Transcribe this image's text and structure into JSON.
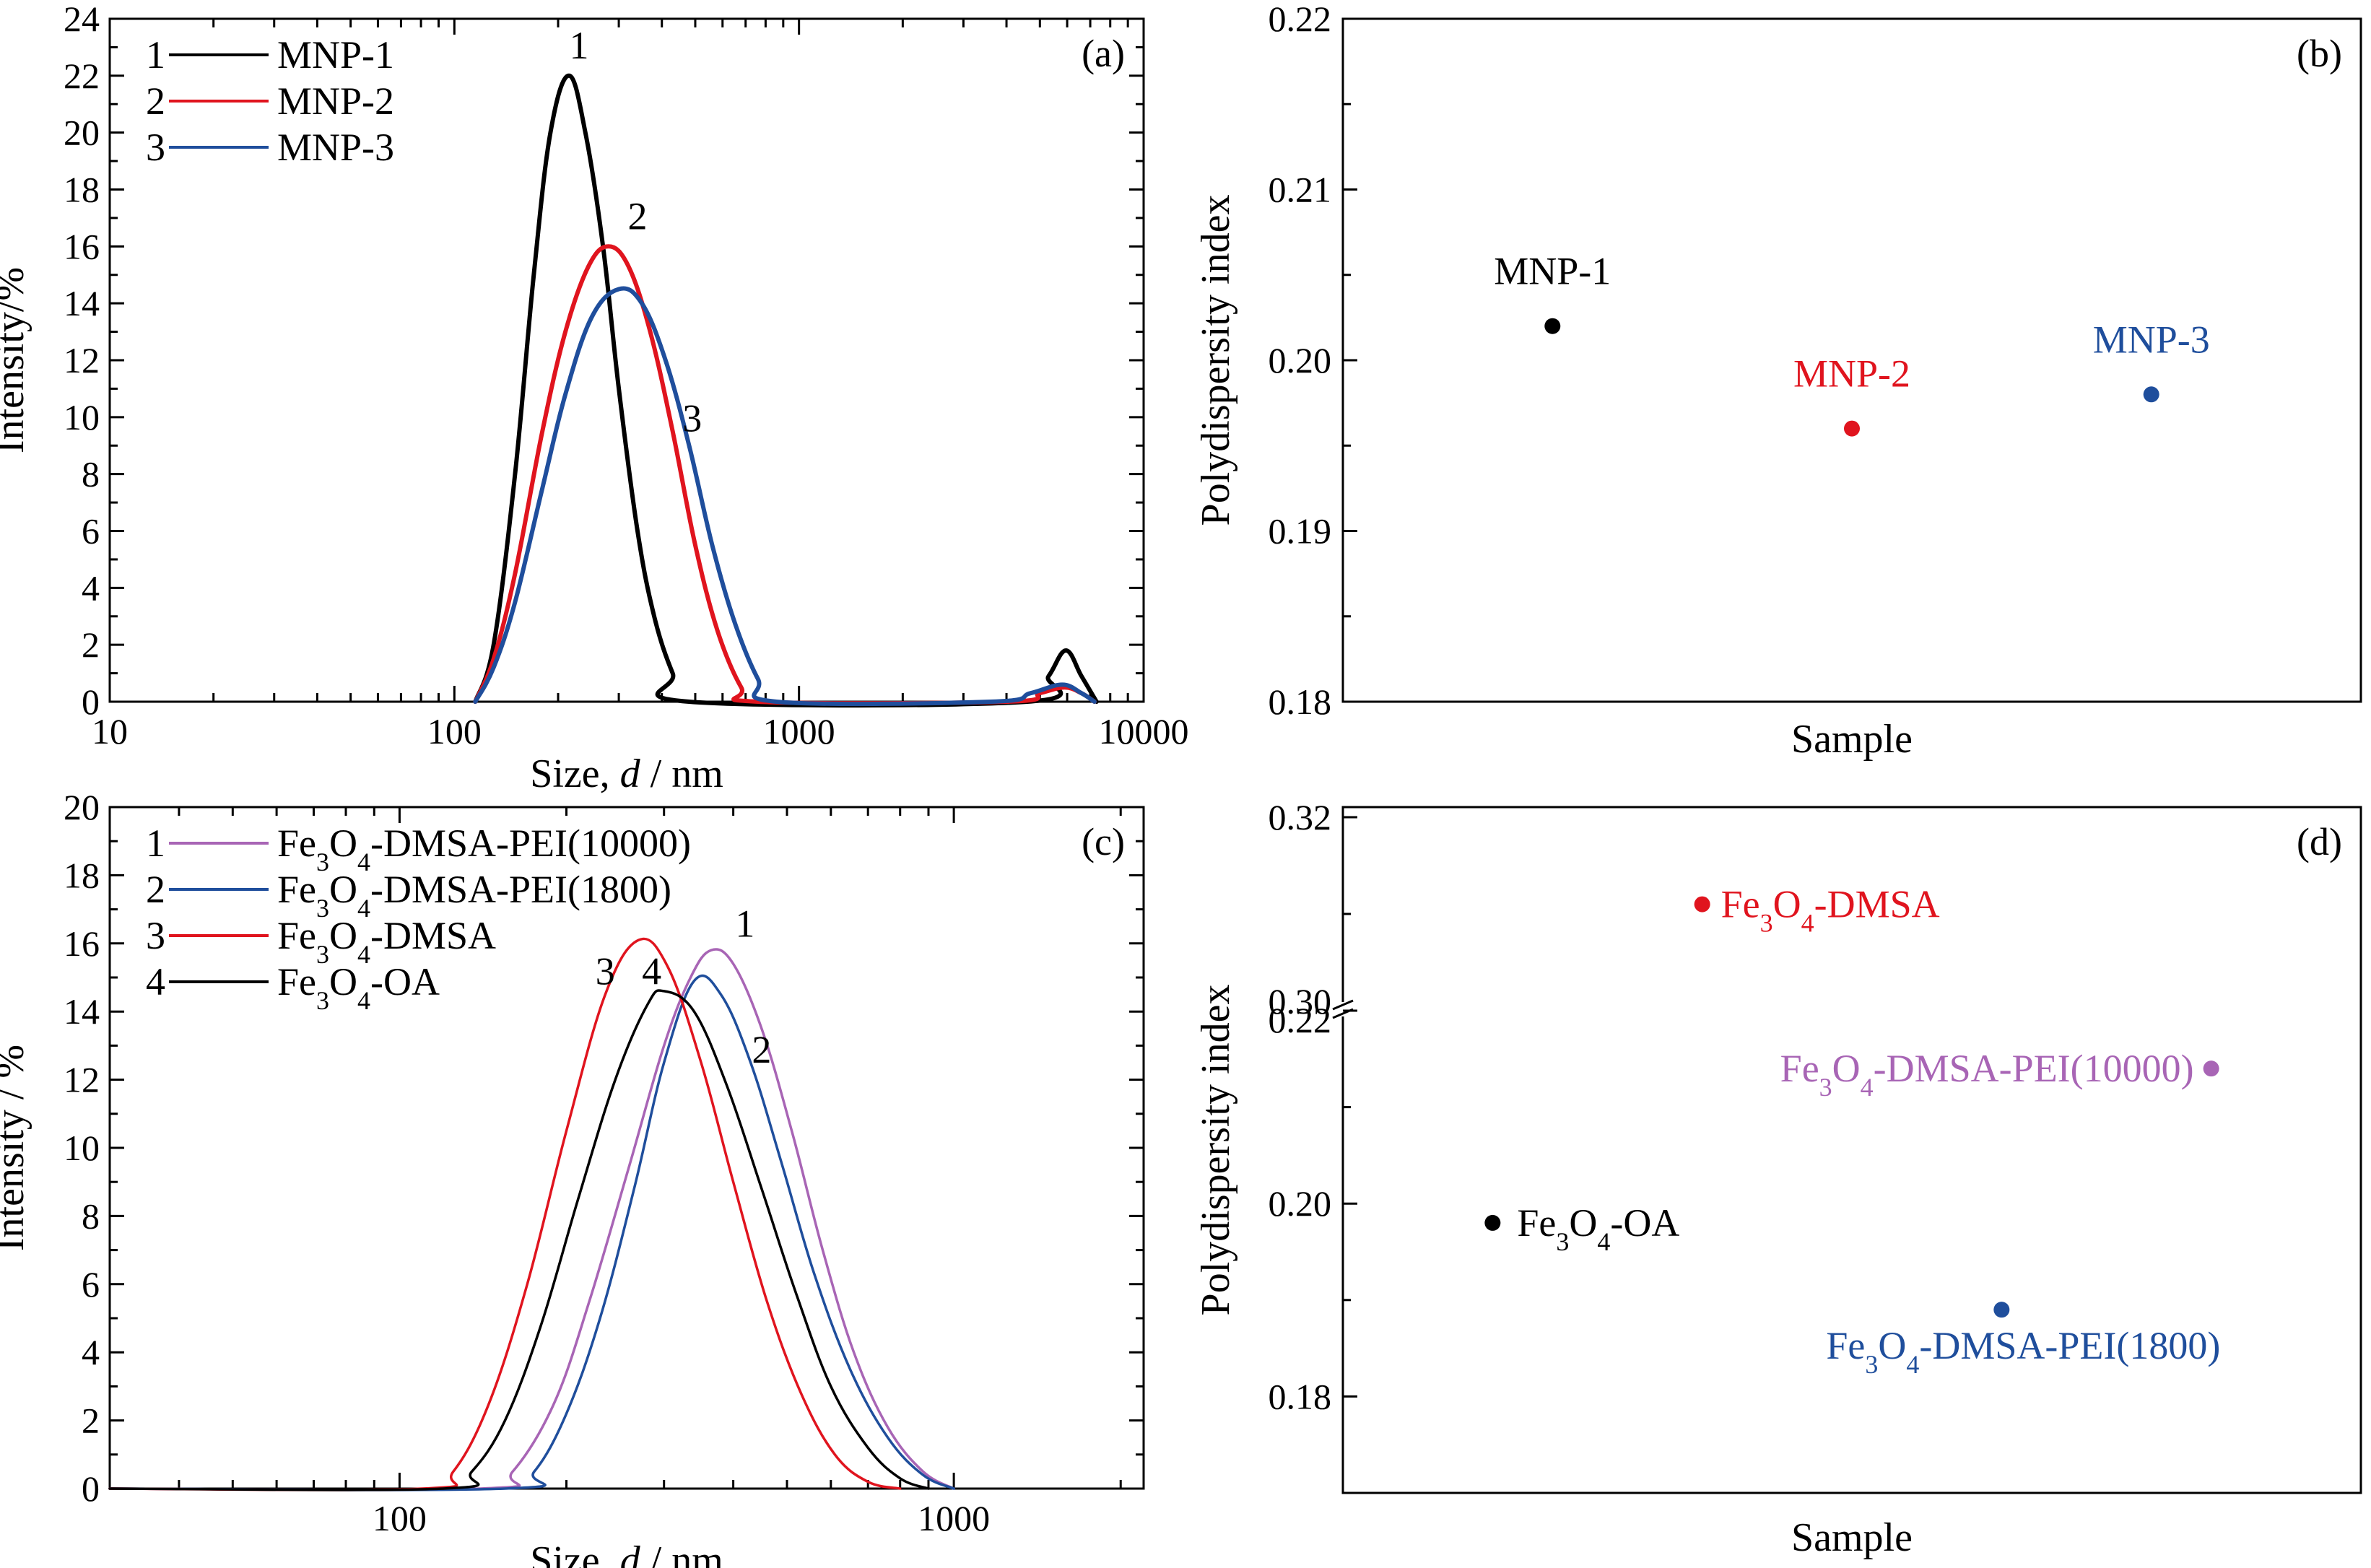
{
  "chart_data": [
    {
      "panel": "(a)",
      "type": "line",
      "x_scale": "log",
      "xlabel_prefix": "Size, ",
      "xlabel_var": "d",
      "xlabel_suffix": " / nm",
      "ylabel": "Intensity/%",
      "xlim": [
        10,
        10000
      ],
      "ylim": [
        0,
        24
      ],
      "x_ticks": [
        "10",
        "100",
        "1000",
        "10000"
      ],
      "y_ticks": [
        "0",
        "2",
        "4",
        "6",
        "8",
        "10",
        "12",
        "14",
        "16",
        "18",
        "20",
        "22",
        "24"
      ],
      "grid": false,
      "legend_position": "top-left",
      "legend": [
        {
          "num": "1",
          "label": "MNP-1"
        },
        {
          "num": "2",
          "label": "MNP-2"
        },
        {
          "num": "3",
          "label": "MNP-3"
        }
      ],
      "series": [
        {
          "name": "MNP-1",
          "color": "#000000",
          "number": "1",
          "peak_size": 215,
          "peak_intensity": 22.0,
          "second_peak_size": 5950,
          "second_peak_intensity": 1.8,
          "points": [
            [
              115,
              0
            ],
            [
              130,
              2
            ],
            [
              150,
              8
            ],
            [
              170,
              15
            ],
            [
              190,
              20
            ],
            [
              215,
              22
            ],
            [
              240,
              20
            ],
            [
              270,
              16
            ],
            [
              300,
              11
            ],
            [
              340,
              6
            ],
            [
              380,
              3
            ],
            [
              430,
              1
            ],
            [
              480,
              0
            ],
            [
              4600,
              0
            ],
            [
              5300,
              0.9
            ],
            [
              5950,
              1.8
            ],
            [
              6600,
              0.9
            ],
            [
              7300,
              0
            ]
          ]
        },
        {
          "name": "MNP-2",
          "color": "#e0141e",
          "number": "2",
          "peak_size": 280,
          "peak_intensity": 16.0,
          "second_peak_size": 5900,
          "second_peak_intensity": 0.5,
          "points": [
            [
              115,
              0
            ],
            [
              130,
              1.5
            ],
            [
              150,
              4.5
            ],
            [
              180,
              9.5
            ],
            [
              210,
              13
            ],
            [
              245,
              15.3
            ],
            [
              280,
              16
            ],
            [
              320,
              15.3
            ],
            [
              370,
              13
            ],
            [
              430,
              9.5
            ],
            [
              500,
              5.5
            ],
            [
              580,
              2.5
            ],
            [
              680,
              0.5
            ],
            [
              760,
              0
            ],
            [
              4000,
              0
            ],
            [
              5000,
              0.3
            ],
            [
              5900,
              0.5
            ],
            [
              6600,
              0.3
            ],
            [
              7200,
              0
            ]
          ]
        },
        {
          "name": "MNP-3",
          "color": "#1f4e9c",
          "number": "3",
          "peak_size": 300,
          "peak_intensity": 14.5,
          "second_peak_size": 5800,
          "second_peak_intensity": 0.6,
          "points": [
            [
              115,
              0
            ],
            [
              130,
              1.2
            ],
            [
              150,
              3.5
            ],
            [
              180,
              7.5
            ],
            [
              210,
              10.8
            ],
            [
              250,
              13.5
            ],
            [
              300,
              14.5
            ],
            [
              350,
              14
            ],
            [
              410,
              12
            ],
            [
              480,
              9
            ],
            [
              560,
              5.5
            ],
            [
              650,
              2.8
            ],
            [
              760,
              0.8
            ],
            [
              860,
              0
            ],
            [
              3600,
              0
            ],
            [
              4700,
              0.3
            ],
            [
              5800,
              0.6
            ],
            [
              6600,
              0.3
            ],
            [
              7200,
              0
            ]
          ]
        }
      ],
      "annotations": [
        {
          "text": "1",
          "x": 230,
          "y": 22.6
        },
        {
          "text": "2",
          "x": 340,
          "y": 16.6
        },
        {
          "text": "3",
          "x": 490,
          "y": 9.5
        }
      ]
    },
    {
      "panel": "(b)",
      "type": "scatter",
      "xlabel": "Sample",
      "ylabel": "Polydispersity index",
      "ylim": [
        0.18,
        0.22
      ],
      "y_ticks": [
        "0.18",
        "0.19",
        "0.20",
        "0.21",
        "0.22"
      ],
      "grid": false,
      "points": [
        {
          "label": "MNP-1",
          "x": 1,
          "y": 0.202,
          "color": "#000000"
        },
        {
          "label": "MNP-2",
          "x": 2,
          "y": 0.196,
          "color": "#e0141e"
        },
        {
          "label": "MNP-3",
          "x": 3,
          "y": 0.198,
          "color": "#1f4e9c"
        }
      ]
    },
    {
      "panel": "(c)",
      "type": "line",
      "x_scale": "log",
      "xlabel_prefix": "Size, ",
      "xlabel_var": "d",
      "xlabel_suffix": " / nm",
      "ylabel": "Intensity / %",
      "xlim": [
        30,
        2200
      ],
      "ylim": [
        0,
        20
      ],
      "x_ticks": [
        "100",
        "1000"
      ],
      "y_ticks": [
        "0",
        "2",
        "4",
        "6",
        "8",
        "10",
        "12",
        "14",
        "16",
        "18",
        "20"
      ],
      "grid": false,
      "legend_position": "top-left",
      "legend": [
        {
          "num": "1",
          "label": "Fe3O4-DMSA-PEI(10000)"
        },
        {
          "num": "2",
          "label": "Fe3O4-DMSA-PEI(1800)"
        },
        {
          "num": "3",
          "label": "Fe3O4-DMSA"
        },
        {
          "num": "4",
          "label": "Fe3O4-OA"
        }
      ],
      "series": [
        {
          "name": "Fe3O4-DMSA-PEI(10000)",
          "color": "#a865b5",
          "number": "1",
          "peak_size": 365,
          "peak_intensity": 15.8,
          "points": [
            [
              30,
              0
            ],
            [
              140,
              0
            ],
            [
              160,
              0.5
            ],
            [
              190,
              2.5
            ],
            [
              220,
              5.5
            ],
            [
              260,
              9.5
            ],
            [
              300,
              13
            ],
            [
              335,
              15
            ],
            [
              365,
              15.8
            ],
            [
              400,
              15.4
            ],
            [
              450,
              13.5
            ],
            [
              510,
              10.5
            ],
            [
              580,
              7
            ],
            [
              660,
              4
            ],
            [
              760,
              1.8
            ],
            [
              880,
              0.5
            ],
            [
              1000,
              0
            ]
          ]
        },
        {
          "name": "Fe3O4-DMSA-PEI(1800)",
          "color": "#1f4e9c",
          "number": "2",
          "peak_size": 340,
          "peak_intensity": 14.9,
          "points": [
            [
              30,
              0
            ],
            [
              155,
              0
            ],
            [
              175,
              0.5
            ],
            [
              200,
              2.2
            ],
            [
              230,
              5
            ],
            [
              265,
              8.8
            ],
            [
              300,
              12.5
            ],
            [
              340,
              14.9
            ],
            [
              380,
              14.5
            ],
            [
              430,
              12.5
            ],
            [
              490,
              9.5
            ],
            [
              560,
              6.3
            ],
            [
              650,
              3.5
            ],
            [
              760,
              1.5
            ],
            [
              880,
              0.4
            ],
            [
              1000,
              0
            ]
          ]
        },
        {
          "name": "Fe3O4-DMSA",
          "color": "#e0141e",
          "number": "3",
          "peak_size": 270,
          "peak_intensity": 16.1,
          "points": [
            [
              30,
              0
            ],
            [
              110,
              0
            ],
            [
              125,
              0.5
            ],
            [
              145,
              2.5
            ],
            [
              170,
              6
            ],
            [
              200,
              10.5
            ],
            [
              235,
              14.5
            ],
            [
              270,
              16.1
            ],
            [
              305,
              15.3
            ],
            [
              350,
              12.5
            ],
            [
              400,
              9
            ],
            [
              460,
              5.5
            ],
            [
              530,
              2.8
            ],
            [
              610,
              1
            ],
            [
              700,
              0.2
            ],
            [
              800,
              0
            ]
          ]
        },
        {
          "name": "Fe3O4-OA",
          "color": "#000000",
          "number": "4",
          "peak_size": 300,
          "peak_intensity": 14.6,
          "points": [
            [
              30,
              0
            ],
            [
              120,
              0
            ],
            [
              135,
              0.5
            ],
            [
              155,
              2
            ],
            [
              180,
              4.8
            ],
            [
              210,
              8.5
            ],
            [
              245,
              12
            ],
            [
              280,
              14.2
            ],
            [
              300,
              14.6
            ],
            [
              340,
              14
            ],
            [
              390,
              11.8
            ],
            [
              450,
              8.8
            ],
            [
              520,
              5.7
            ],
            [
              600,
              3
            ],
            [
              700,
              1.2
            ],
            [
              800,
              0.3
            ],
            [
              900,
              0
            ]
          ]
        }
      ],
      "annotations": [
        {
          "text": "1",
          "x": 420,
          "y": 16.2
        },
        {
          "text": "2",
          "x": 450,
          "y": 12.5
        },
        {
          "text": "3",
          "x": 235,
          "y": 14.8
        },
        {
          "text": "4",
          "x": 285,
          "y": 14.8
        }
      ]
    },
    {
      "panel": "(d)",
      "type": "scatter",
      "xlabel": "Sample",
      "ylabel": "Polydispersity index",
      "axis_break": true,
      "ylim_lower": [
        0.17,
        0.22
      ],
      "ylim_upper": [
        0.3,
        0.32
      ],
      "y_ticks_lower": [
        "0.18",
        "0.20",
        "0.22"
      ],
      "y_ticks_upper": [
        "0.30",
        "0.32"
      ],
      "grid": false,
      "points": [
        {
          "label": "Fe3O4-DMSA",
          "x": 1.5,
          "y": 0.311,
          "color": "#e0141e"
        },
        {
          "label": "Fe3O4-DMSA-PEI(10000)",
          "x": 3.2,
          "y": 0.214,
          "color": "#a865b5"
        },
        {
          "label": "Fe3O4-OA",
          "x": 0.8,
          "y": 0.198,
          "color": "#000000"
        },
        {
          "label": "Fe3O4-DMSA-PEI(1800)",
          "x": 2.5,
          "y": 0.189,
          "color": "#1f4e9c"
        }
      ]
    }
  ]
}
